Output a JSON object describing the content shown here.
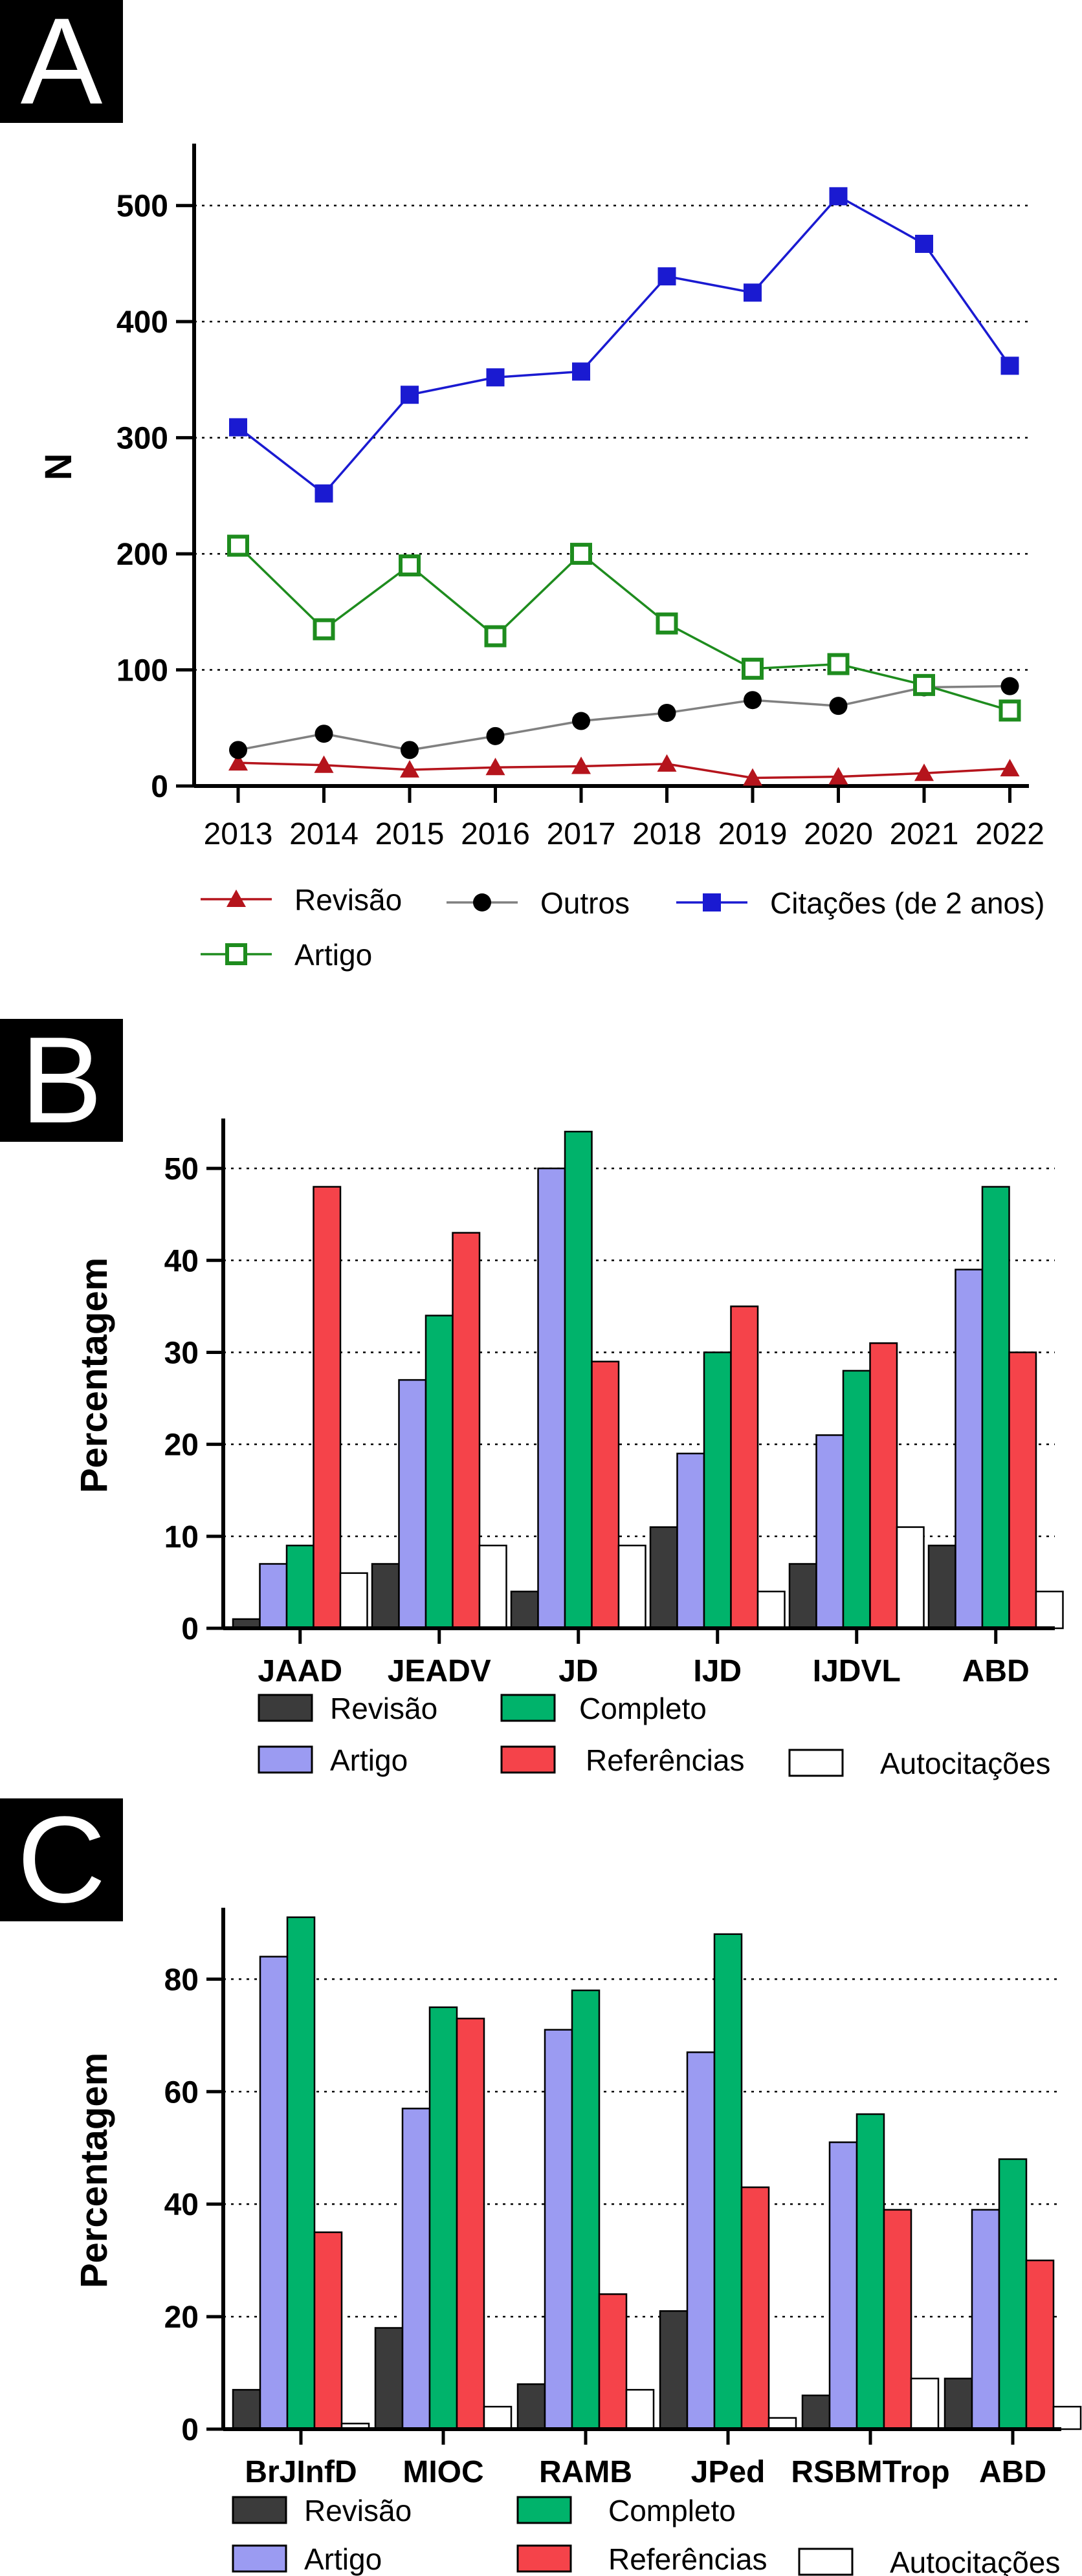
{
  "panels": {
    "a": "A",
    "b": "B",
    "c": "C"
  },
  "chart_data": [
    {
      "type": "line",
      "panel": "A",
      "title": "",
      "xlabel": "",
      "ylabel": "N",
      "ylim": [
        0,
        550
      ],
      "yticks": [
        0,
        100,
        200,
        300,
        400,
        500
      ],
      "x": [
        "2013",
        "2014",
        "2015",
        "2016",
        "2017",
        "2018",
        "2019",
        "2020",
        "2021",
        "2022"
      ],
      "grid": "horizontal dotted",
      "legend_position": "bottom",
      "series": [
        {
          "name": "Revisão",
          "color": "#b5141c",
          "marker": "triangle",
          "values": [
            20,
            18,
            14,
            16,
            17,
            19,
            7,
            8,
            11,
            15
          ]
        },
        {
          "name": "Outros",
          "color": "#808080",
          "marker_color": "#000000",
          "marker": "circle",
          "values": [
            31,
            45,
            31,
            43,
            56,
            63,
            74,
            69,
            85,
            86
          ]
        },
        {
          "name": "Citações (de 2 anos)",
          "color": "#1a1ad1",
          "marker": "square",
          "values": [
            309,
            252,
            337,
            352,
            357,
            439,
            425,
            508,
            467,
            362
          ]
        },
        {
          "name": "Artigo",
          "color": "#1e8c1e",
          "marker": "open-square",
          "values": [
            207,
            135,
            190,
            129,
            200,
            140,
            101,
            105,
            87,
            65
          ]
        }
      ]
    },
    {
      "type": "bar",
      "panel": "B",
      "title": "",
      "xlabel": "",
      "ylabel": "Percentagem",
      "ylim": [
        0,
        55
      ],
      "yticks": [
        0,
        10,
        20,
        30,
        40,
        50
      ],
      "categories": [
        "JAAD",
        "JEADV",
        "JD",
        "IJD",
        "IJDVL",
        "ABD"
      ],
      "grid": "horizontal dotted",
      "legend_position": "bottom",
      "series": [
        {
          "name": "Revisão",
          "color": "#3b3b3b",
          "values": [
            1,
            7,
            4,
            11,
            7,
            9
          ]
        },
        {
          "name": "Artigo",
          "color": "#9b9bf2",
          "values": [
            7,
            27,
            50,
            19,
            21,
            39
          ]
        },
        {
          "name": "Completo",
          "color": "#00b36b",
          "values": [
            9,
            34,
            54,
            30,
            28,
            48
          ]
        },
        {
          "name": "Referências",
          "color": "#f5434a",
          "values": [
            48,
            43,
            29,
            35,
            31,
            30
          ]
        },
        {
          "name": "Autocitações",
          "color": "#ffffff",
          "values": [
            6,
            9,
            9,
            4,
            11,
            4
          ]
        }
      ]
    },
    {
      "type": "bar",
      "panel": "C",
      "title": "",
      "xlabel": "",
      "ylabel": "Percentagem",
      "ylim": [
        0,
        92
      ],
      "yticks": [
        0,
        20,
        40,
        60,
        80
      ],
      "categories": [
        "BrJInfD",
        "MIOC",
        "RAMB",
        "JPed",
        "RSBMTrop",
        "ABD"
      ],
      "grid": "horizontal dotted",
      "legend_position": "bottom",
      "series": [
        {
          "name": "Revisão",
          "color": "#3b3b3b",
          "values": [
            7,
            18,
            8,
            21,
            6,
            9
          ]
        },
        {
          "name": "Artigo",
          "color": "#9b9bf2",
          "values": [
            84,
            57,
            71,
            67,
            51,
            39
          ]
        },
        {
          "name": "Completo",
          "color": "#00b36b",
          "values": [
            91,
            75,
            78,
            88,
            56,
            48
          ]
        },
        {
          "name": "Referências",
          "color": "#f5434a",
          "values": [
            35,
            73,
            24,
            43,
            39,
            30
          ]
        },
        {
          "name": "Autocitações",
          "color": "#ffffff",
          "values": [
            1,
            4,
            7,
            2,
            9,
            4
          ]
        }
      ]
    }
  ]
}
